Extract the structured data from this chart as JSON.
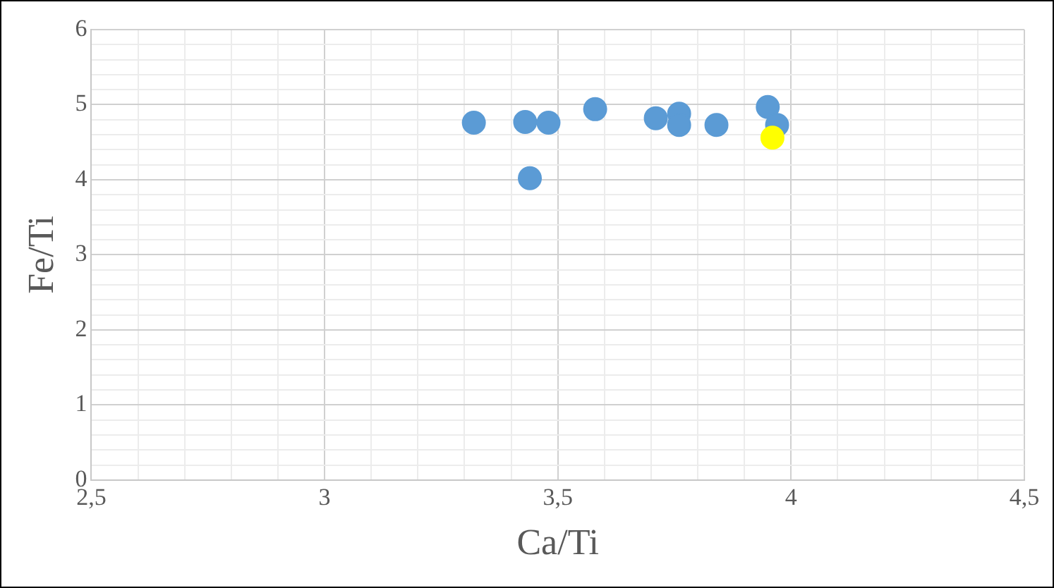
{
  "chart_data": {
    "type": "scatter",
    "xlabel": "Ca/Ti",
    "ylabel": "Fe/Ti",
    "xlim": [
      2.5,
      4.5
    ],
    "ylim": [
      0,
      6
    ],
    "xticks": [
      {
        "value": 2.5,
        "label": "2,5"
      },
      {
        "value": 2.6,
        "label": null
      },
      {
        "value": 2.7,
        "label": null
      },
      {
        "value": 2.8,
        "label": null
      },
      {
        "value": 2.9,
        "label": null
      },
      3,
      {
        "value": 3.1,
        "label": null
      },
      {
        "value": 3.2,
        "label": null
      },
      {
        "value": 3.3,
        "label": null
      },
      {
        "value": 3.4,
        "label": null
      },
      {
        "value": 3.5,
        "label": "3,5"
      },
      {
        "value": 3.6,
        "label": null
      },
      {
        "value": 3.7,
        "label": null
      },
      {
        "value": 3.8,
        "label": null
      },
      {
        "value": 3.9,
        "label": null
      },
      4,
      {
        "value": 4.1,
        "label": null
      },
      {
        "value": 4.2,
        "label": null
      },
      {
        "value": 4.3,
        "label": null
      },
      {
        "value": 4.4,
        "label": null
      },
      {
        "value": 4.5,
        "label": "4,5"
      }
    ],
    "yticks": [
      0,
      {
        "value": 0.2,
        "label": null
      },
      {
        "value": 0.4,
        "label": null
      },
      {
        "value": 0.6,
        "label": null
      },
      {
        "value": 0.8,
        "label": null
      },
      1,
      {
        "value": 1.2,
        "label": null
      },
      {
        "value": 1.4,
        "label": null
      },
      {
        "value": 1.6,
        "label": null
      },
      {
        "value": 1.8,
        "label": null
      },
      2,
      {
        "value": 2.2,
        "label": null
      },
      {
        "value": 2.4,
        "label": null
      },
      {
        "value": 2.6,
        "label": null
      },
      {
        "value": 2.8,
        "label": null
      },
      3,
      {
        "value": 3.2,
        "label": null
      },
      {
        "value": 3.4,
        "label": null
      },
      {
        "value": 3.6,
        "label": null
      },
      {
        "value": 3.8,
        "label": null
      },
      4,
      {
        "value": 4.2,
        "label": null
      },
      {
        "value": 4.4,
        "label": null
      },
      {
        "value": 4.6,
        "label": null
      },
      {
        "value": 4.8,
        "label": null
      },
      5,
      {
        "value": 5.2,
        "label": null
      },
      {
        "value": 5.4,
        "label": null
      },
      {
        "value": 5.6,
        "label": null
      },
      {
        "value": 5.8,
        "label": null
      },
      6
    ],
    "grid": true,
    "legend": false,
    "marker": "circle",
    "series": [
      {
        "color": "#5b9bd5",
        "x": [
          3.32,
          3.43,
          3.48,
          3.44,
          3.58,
          3.71,
          3.76,
          3.76,
          3.84,
          3.95,
          3.97
        ],
        "values": [
          4.76,
          4.77,
          4.76,
          4.02,
          4.94,
          4.82,
          4.88,
          4.73,
          4.73,
          4.97,
          4.73
        ]
      },
      {
        "color": "#ffff00",
        "x": [
          3.96
        ],
        "values": [
          4.56
        ]
      }
    ]
  }
}
